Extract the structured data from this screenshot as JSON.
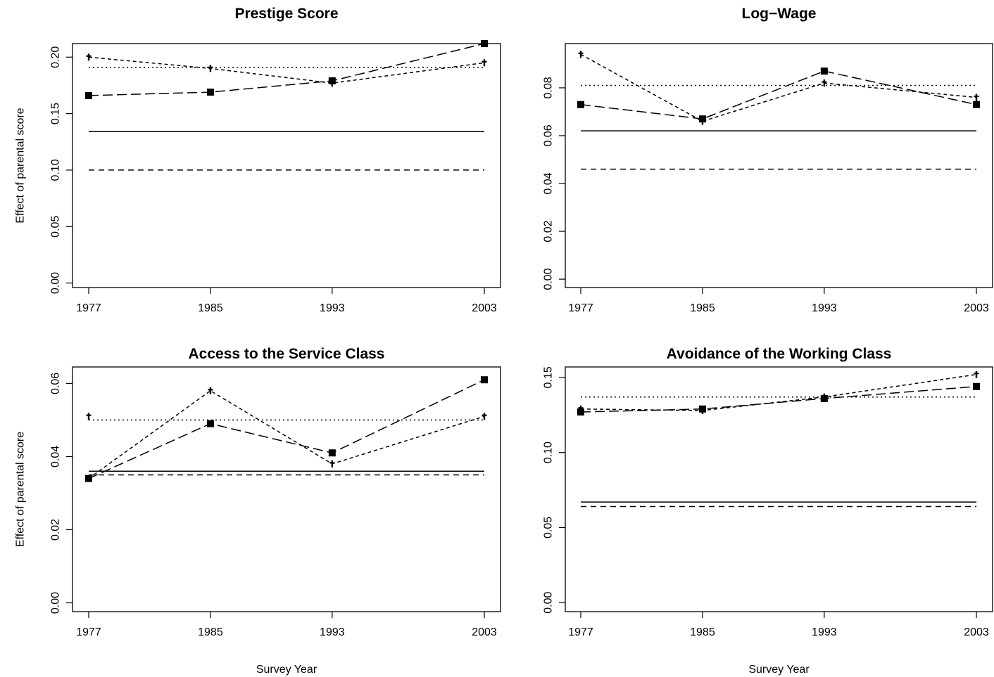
{
  "figure": {
    "shared_xlabel": "Survey Year",
    "shared_ylabel": "Effect of parental score"
  },
  "chart_data": [
    {
      "type": "line",
      "title": "Prestige Score",
      "xlabel": "",
      "ylabel": "Effect of parental score",
      "categories": [
        "1977",
        "1985",
        "1993",
        "2003"
      ],
      "yticks": [
        "0.00",
        "0.05",
        "0.10",
        "0.15",
        "0.20"
      ],
      "ylim": [
        -0.004,
        0.212
      ],
      "grid": false,
      "series": [
        {
          "style": "solid",
          "kind": "hline",
          "value": 0.134
        },
        {
          "style": "dashed",
          "kind": "hline",
          "value": 0.1
        },
        {
          "style": "dotted",
          "kind": "hline",
          "value": 0.191
        },
        {
          "style": "longdash",
          "marker": "square",
          "kind": "line",
          "values": [
            0.166,
            0.169,
            0.179,
            0.212
          ]
        },
        {
          "style": "shortdash",
          "marker": "dagger",
          "kind": "line",
          "values": [
            0.2,
            0.19,
            0.177,
            0.195
          ]
        }
      ]
    },
    {
      "type": "line",
      "title": "Log−Wage",
      "xlabel": "",
      "ylabel": "",
      "categories": [
        "1977",
        "1985",
        "1993",
        "2003"
      ],
      "yticks": [
        "0.00",
        "0.02",
        "0.04",
        "0.06",
        "0.08"
      ],
      "ylim": [
        -0.0035,
        0.0985
      ],
      "grid": false,
      "series": [
        {
          "style": "solid",
          "kind": "hline",
          "value": 0.062
        },
        {
          "style": "dashed",
          "kind": "hline",
          "value": 0.046
        },
        {
          "style": "dotted",
          "kind": "hline",
          "value": 0.081
        },
        {
          "style": "longdash",
          "marker": "square",
          "kind": "line",
          "values": [
            0.073,
            0.067,
            0.087,
            0.073
          ]
        },
        {
          "style": "shortdash",
          "marker": "dagger",
          "kind": "line",
          "values": [
            0.094,
            0.066,
            0.082,
            0.076
          ]
        }
      ]
    },
    {
      "type": "line",
      "title": "Access to the Service Class",
      "xlabel": "Survey Year",
      "ylabel": "Effect of parental score",
      "categories": [
        "1977",
        "1985",
        "1993",
        "2003"
      ],
      "yticks": [
        "0.00",
        "0.02",
        "0.04",
        "0.06"
      ],
      "ylim": [
        -0.0024,
        0.0645
      ],
      "grid": false,
      "series": [
        {
          "style": "solid",
          "kind": "hline",
          "value": 0.036
        },
        {
          "style": "dashed",
          "kind": "hline",
          "value": 0.035
        },
        {
          "style": "dotted",
          "kind": "hline",
          "value": 0.05
        },
        {
          "style": "longdash",
          "marker": "square",
          "kind": "line",
          "values": [
            0.034,
            0.049,
            0.041,
            0.061
          ]
        },
        {
          "style": "shortdash",
          "marker": "dagger",
          "kind": "line",
          "values": [
            0.034,
            0.058,
            0.038,
            0.051
          ]
        },
        {
          "style": "none",
          "marker": "dagger",
          "kind": "points",
          "values": [
            0.051,
            null,
            null,
            null
          ]
        }
      ]
    },
    {
      "type": "line",
      "title": "Avoidance of the Working Class",
      "xlabel": "Survey Year",
      "ylabel": "",
      "categories": [
        "1977",
        "1985",
        "1993",
        "2003"
      ],
      "yticks": [
        "0.00",
        "0.05",
        "0.10",
        "0.15"
      ],
      "ylim": [
        -0.006,
        0.157
      ],
      "grid": false,
      "series": [
        {
          "style": "solid",
          "kind": "hline",
          "value": 0.067
        },
        {
          "style": "dashed",
          "kind": "hline",
          "value": 0.064
        },
        {
          "style": "dotted",
          "kind": "hline",
          "value": 0.137
        },
        {
          "style": "longdash",
          "marker": "square",
          "kind": "line",
          "values": [
            0.127,
            0.129,
            0.136,
            0.144
          ]
        },
        {
          "style": "shortdash",
          "marker": "dagger",
          "kind": "line",
          "values": [
            0.129,
            0.128,
            0.137,
            0.152
          ]
        }
      ]
    }
  ]
}
